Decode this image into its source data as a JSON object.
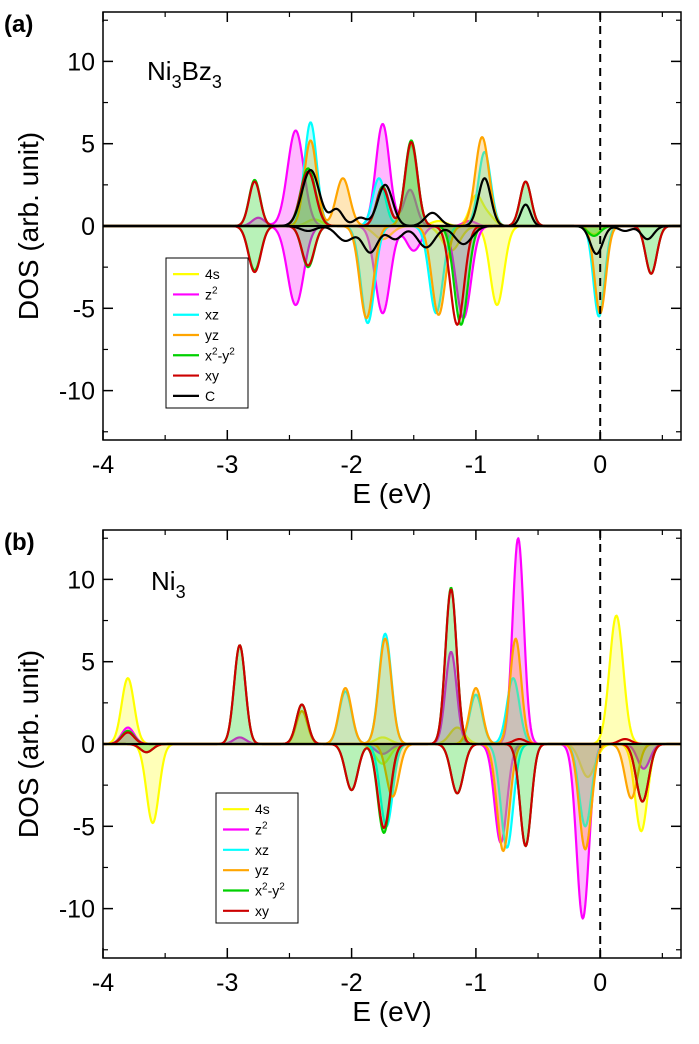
{
  "chart_data": [
    {
      "type": "line",
      "panel_label": "(a)",
      "formula": {
        "parts": [
          [
            "Ni",
            "n"
          ],
          [
            "3",
            "s"
          ],
          [
            "Bz",
            "n"
          ],
          [
            "3",
            "s"
          ]
        ]
      },
      "xlabel": "E (eV)",
      "ylabel": "DOS (arb. unit)",
      "xlim": [
        -4,
        0.65
      ],
      "ylim": [
        -13,
        13
      ],
      "xticks": [
        "-4",
        "-3",
        "-2",
        "-1",
        "0"
      ],
      "yticks": [
        "10",
        "5",
        "0",
        "-5",
        "-10"
      ],
      "fermi_level": 0,
      "legend": {
        "position": "lower-left",
        "entries": [
          {
            "label": [
              [
                "4s",
                "n"
              ]
            ]
          },
          {
            "label": [
              [
                "z",
                "n"
              ],
              [
                "2",
                "p"
              ]
            ]
          },
          {
            "label": [
              [
                "xz",
                "n"
              ]
            ]
          },
          {
            "label": [
              [
                "yz",
                "n"
              ]
            ]
          },
          {
            "label": [
              [
                "x",
                "n"
              ],
              [
                "2",
                "p"
              ],
              [
                "-y",
                "n"
              ],
              [
                "2",
                "p"
              ]
            ]
          },
          {
            "label": [
              [
                "xy",
                "n"
              ]
            ]
          },
          {
            "label": [
              [
                "C",
                "n"
              ]
            ]
          }
        ]
      },
      "series": [
        {
          "color": "#ffff00",
          "fill": true,
          "up": [
            [
              -1.0,
              1.8,
              0.05
            ],
            [
              -0.9,
              0.6,
              0.05
            ],
            [
              -2.3,
              0.4,
              0.06
            ],
            [
              -1.3,
              0.3,
              0.06
            ]
          ],
          "down": [
            [
              -0.83,
              -4.8,
              0.055
            ],
            [
              -1.2,
              -1.5,
              0.07
            ],
            [
              -1.75,
              -0.8,
              0.07
            ],
            [
              -0.05,
              -0.5,
              0.05
            ]
          ]
        },
        {
          "color": "#ff00ff",
          "fill": true,
          "up": [
            [
              -2.45,
              5.8,
              0.065
            ],
            [
              -1.75,
              6.2,
              0.055
            ],
            [
              -1.53,
              2.2,
              0.05
            ],
            [
              -2.75,
              0.5,
              0.05
            ],
            [
              -1.05,
              0.3,
              0.05
            ]
          ],
          "down": [
            [
              -2.45,
              -4.8,
              0.065
            ],
            [
              -1.75,
              -5.3,
              0.06
            ],
            [
              -1.1,
              -5.6,
              0.06
            ],
            [
              -1.5,
              -1.5,
              0.06
            ]
          ]
        },
        {
          "color": "#00ffff",
          "fill": true,
          "up": [
            [
              -2.33,
              6.3,
              0.05
            ],
            [
              -1.78,
              2.9,
              0.05
            ],
            [
              -0.93,
              4.5,
              0.05
            ],
            [
              -1.52,
              4.9,
              0.05
            ]
          ],
          "down": [
            [
              -1.87,
              -5.9,
              0.055
            ],
            [
              -1.32,
              -5.3,
              0.055
            ],
            [
              -0.01,
              -5.5,
              0.045
            ]
          ]
        },
        {
          "color": "#ffa500",
          "fill": true,
          "up": [
            [
              -2.33,
              5.2,
              0.05
            ],
            [
              -2.07,
              2.9,
              0.055
            ],
            [
              -0.95,
              5.4,
              0.055
            ],
            [
              -1.52,
              5.0,
              0.05
            ]
          ],
          "down": [
            [
              -1.88,
              -5.6,
              0.055
            ],
            [
              -1.3,
              -5.4,
              0.055
            ],
            [
              0.0,
              -5.3,
              0.045
            ]
          ]
        },
        {
          "color": "#00d000",
          "fill": true,
          "up": [
            [
              -2.78,
              2.8,
              0.045
            ],
            [
              -2.35,
              3.5,
              0.06
            ],
            [
              -1.75,
              2.4,
              0.05
            ],
            [
              -1.52,
              5.2,
              0.05
            ],
            [
              -0.6,
              2.7,
              0.045
            ]
          ],
          "down": [
            [
              -2.78,
              -2.7,
              0.05
            ],
            [
              -2.35,
              -2.5,
              0.05
            ],
            [
              -1.12,
              -6.0,
              0.055
            ],
            [
              -0.05,
              -0.6,
              0.05
            ],
            [
              0.41,
              -2.9,
              0.045
            ]
          ]
        },
        {
          "color": "#cc0000",
          "fill": false,
          "up": [
            [
              -2.78,
              2.7,
              0.045
            ],
            [
              -2.35,
              3.3,
              0.06
            ],
            [
              -1.75,
              2.3,
              0.05
            ],
            [
              -1.52,
              5.1,
              0.05
            ],
            [
              -0.6,
              2.7,
              0.045
            ]
          ],
          "down": [
            [
              -2.78,
              -2.8,
              0.05
            ],
            [
              -2.35,
              -2.4,
              0.05
            ],
            [
              -1.15,
              -6.0,
              0.055
            ],
            [
              0.41,
              -2.9,
              0.045
            ]
          ]
        },
        {
          "color": "#000000",
          "fill": false,
          "up": [
            [
              -2.33,
              3.4,
              0.07
            ],
            [
              -2.12,
              1.0,
              0.05
            ],
            [
              -1.73,
              2.5,
              0.06
            ],
            [
              -1.35,
              0.8,
              0.06
            ],
            [
              -0.93,
              2.9,
              0.05
            ],
            [
              -0.6,
              1.3,
              0.04
            ],
            [
              -1.93,
              0.5,
              0.05
            ]
          ],
          "down": [
            [
              -2.35,
              -0.3,
              0.06
            ],
            [
              -2.05,
              -0.9,
              0.07
            ],
            [
              -1.85,
              -1.6,
              0.06
            ],
            [
              -1.4,
              -1.3,
              0.07
            ],
            [
              -1.1,
              -1.1,
              0.07
            ],
            [
              -1.65,
              -0.8,
              0.06
            ],
            [
              -0.03,
              -1.7,
              0.05
            ],
            [
              0.38,
              -0.8,
              0.05
            ],
            [
              0.2,
              -0.3,
              0.05
            ]
          ]
        }
      ]
    },
    {
      "type": "line",
      "panel_label": "(b)",
      "formula": {
        "parts": [
          [
            "Ni",
            "n"
          ],
          [
            "3",
            "s"
          ]
        ]
      },
      "xlabel": "E (eV)",
      "ylabel": "DOS (arb. unit)",
      "xlim": [
        -4,
        0.65
      ],
      "ylim": [
        -13,
        13
      ],
      "xticks": [
        "-4",
        "-3",
        "-2",
        "-1",
        "0"
      ],
      "yticks": [
        "10",
        "5",
        "0",
        "-5",
        "-10"
      ],
      "fermi_level": 0,
      "legend": {
        "position": "lower-left",
        "entries": [
          {
            "label": [
              [
                "4s",
                "n"
              ]
            ]
          },
          {
            "label": [
              [
                "z",
                "n"
              ],
              [
                "2",
                "p"
              ]
            ]
          },
          {
            "label": [
              [
                "xz",
                "n"
              ]
            ]
          },
          {
            "label": [
              [
                "yz",
                "n"
              ]
            ]
          },
          {
            "label": [
              [
                "x",
                "n"
              ],
              [
                "2",
                "p"
              ],
              [
                "-y",
                "n"
              ],
              [
                "2",
                "p"
              ]
            ]
          },
          {
            "label": [
              [
                "xy",
                "n"
              ]
            ]
          }
        ]
      },
      "series": [
        {
          "color": "#ffff00",
          "fill": true,
          "up": [
            [
              -3.8,
              4.0,
              0.05
            ],
            [
              0.13,
              7.8,
              0.055
            ],
            [
              -1.75,
              0.4,
              0.06
            ],
            [
              -1.15,
              1.0,
              0.06
            ]
          ],
          "down": [
            [
              -3.6,
              -4.8,
              0.05
            ],
            [
              0.33,
              -5.3,
              0.05
            ],
            [
              -0.1,
              -2.0,
              0.06
            ],
            [
              -1.75,
              -1.2,
              0.06
            ]
          ]
        },
        {
          "color": "#ff00ff",
          "fill": true,
          "up": [
            [
              -0.66,
              12.5,
              0.045
            ],
            [
              -1.2,
              5.6,
              0.045
            ],
            [
              -3.8,
              1.0,
              0.05
            ],
            [
              -2.9,
              0.4,
              0.05
            ]
          ],
          "down": [
            [
              -0.8,
              -6.0,
              0.05
            ],
            [
              -0.14,
              -10.6,
              0.05
            ],
            [
              -1.75,
              -0.6,
              0.06
            ],
            [
              0.35,
              -1.5,
              0.05
            ]
          ]
        },
        {
          "color": "#00ffff",
          "fill": true,
          "up": [
            [
              -1.73,
              6.7,
              0.05
            ],
            [
              -2.05,
              3.2,
              0.05
            ],
            [
              -1.0,
              3.0,
              0.05
            ],
            [
              -0.7,
              4.0,
              0.05
            ]
          ],
          "down": [
            [
              -1.72,
              -5.0,
              0.05
            ],
            [
              -0.75,
              -6.3,
              0.05
            ],
            [
              -0.12,
              -5.0,
              0.05
            ]
          ]
        },
        {
          "color": "#ffa500",
          "fill": true,
          "up": [
            [
              -2.05,
              3.4,
              0.05
            ],
            [
              -1.73,
              6.4,
              0.05
            ],
            [
              -1.0,
              3.4,
              0.05
            ],
            [
              -0.68,
              6.4,
              0.045
            ],
            [
              -2.4,
              2.0,
              0.045
            ]
          ],
          "down": [
            [
              -1.67,
              -3.2,
              0.05
            ],
            [
              -0.78,
              -6.5,
              0.05
            ],
            [
              -0.12,
              -6.4,
              0.05
            ],
            [
              0.25,
              -3.3,
              0.05
            ]
          ]
        },
        {
          "color": "#00d000",
          "fill": true,
          "up": [
            [
              -2.9,
              6.0,
              0.045
            ],
            [
              -2.4,
              2.4,
              0.045
            ],
            [
              -1.2,
              9.5,
              0.045
            ],
            [
              -3.8,
              0.8,
              0.05
            ]
          ],
          "down": [
            [
              -2.0,
              -2.8,
              0.05
            ],
            [
              -1.74,
              -5.4,
              0.05
            ],
            [
              -1.15,
              -3.0,
              0.05
            ],
            [
              -0.6,
              -6.2,
              0.045
            ],
            [
              -3.65,
              -0.5,
              0.05
            ],
            [
              0.34,
              -3.5,
              0.05
            ]
          ]
        },
        {
          "color": "#cc0000",
          "fill": false,
          "up": [
            [
              -2.9,
              6.0,
              0.045
            ],
            [
              -2.4,
              2.4,
              0.045
            ],
            [
              -1.2,
              9.4,
              0.045
            ],
            [
              -3.8,
              0.7,
              0.05
            ],
            [
              -0.65,
              0.3,
              0.05
            ],
            [
              0.2,
              0.3,
              0.05
            ]
          ],
          "down": [
            [
              -2.0,
              -2.8,
              0.05
            ],
            [
              -1.74,
              -5.1,
              0.05
            ],
            [
              -1.15,
              -3.0,
              0.05
            ],
            [
              -0.6,
              -6.2,
              0.045
            ],
            [
              -3.65,
              -0.5,
              0.05
            ],
            [
              0.34,
              -3.5,
              0.05
            ]
          ]
        }
      ]
    }
  ]
}
